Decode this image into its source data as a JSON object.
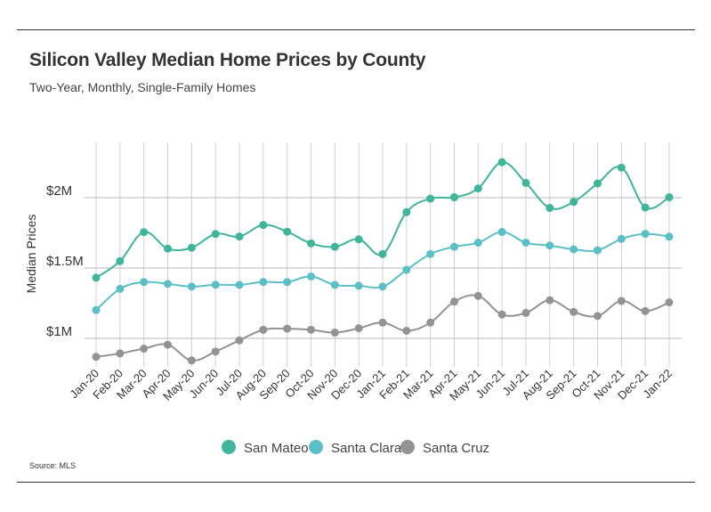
{
  "header": {
    "title": "Silicon Valley Median Home Prices by County",
    "subtitle": "Two-Year, Monthly, Single-Family Homes"
  },
  "footer": {
    "source": "Source:  MLS"
  },
  "chart_data": {
    "type": "line",
    "title": "Silicon Valley Median Home Prices by County",
    "subtitle": "Two-Year, Monthly, Single-Family Homes",
    "xlabel": "",
    "ylabel": "Median Prices",
    "x": [
      "Jan-20",
      "Feb-20",
      "Mar-20",
      "Apr-20",
      "May-20",
      "Jun-20",
      "Jul-20",
      "Aug-20",
      "Sep-20",
      "Oct-20",
      "Nov-20",
      "Dec-20",
      "Jan-21",
      "Feb-21",
      "Mar-21",
      "Apr-21",
      "May-21",
      "Jun-21",
      "Jul-21",
      "Aug-21",
      "Sep-21",
      "Oct-21",
      "Nov-21",
      "Dec-21",
      "Jan-22"
    ],
    "yticks": [
      1000000,
      1500000,
      2000000
    ],
    "yticklabels": [
      "$1M",
      "$1.5M",
      "$2M"
    ],
    "ylim": [
      850000,
      2300000
    ],
    "grid": true,
    "legend": "bottom",
    "series": [
      {
        "name": "San Mateo",
        "color": "#3fb59b",
        "values": [
          1431000,
          1549000,
          1755000,
          1638000,
          1644000,
          1742000,
          1724000,
          1806000,
          1758000,
          1675000,
          1651000,
          1704000,
          1599000,
          1897000,
          1993000,
          2003000,
          2066000,
          2252000,
          2105000,
          1927000,
          1970000,
          2101000,
          2214000,
          1930000,
          2003000
        ]
      },
      {
        "name": "Santa Clara",
        "color": "#5bbfc6",
        "values": [
          1201000,
          1352000,
          1400000,
          1387000,
          1368000,
          1381000,
          1380000,
          1401000,
          1400000,
          1440000,
          1380000,
          1374000,
          1368000,
          1487000,
          1599000,
          1651000,
          1680000,
          1756000,
          1680000,
          1660000,
          1633000,
          1626000,
          1707000,
          1743000,
          1723000
        ]
      },
      {
        "name": "Santa Cruz",
        "color": "#939393",
        "values": [
          869000,
          893000,
          927000,
          955000,
          843000,
          906000,
          986000,
          1061000,
          1069000,
          1061000,
          1041000,
          1072000,
          1112000,
          1054000,
          1112000,
          1261000,
          1302000,
          1170000,
          1181000,
          1271000,
          1188000,
          1159000,
          1266000,
          1194000,
          1256000
        ]
      }
    ]
  }
}
